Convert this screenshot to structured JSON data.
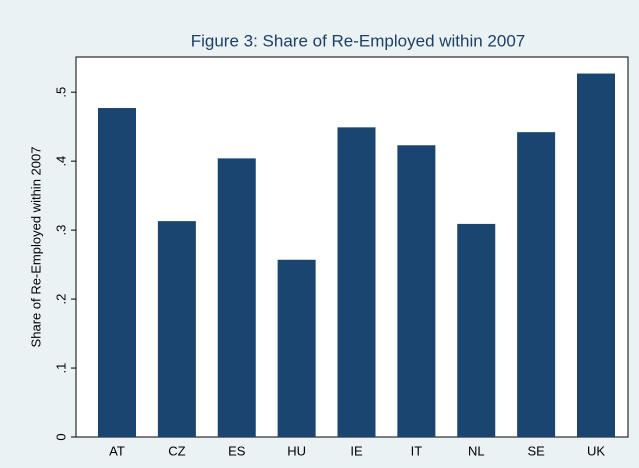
{
  "chart_data": {
    "type": "bar",
    "title": "Figure 3: Share of Re-Employed within 2007",
    "y_label": "Share of Re-Employed within 2007",
    "categories": [
      "AT",
      "CZ",
      "ES",
      "HU",
      "IE",
      "IT",
      "NL",
      "SE",
      "UK"
    ],
    "values": [
      0.477,
      0.313,
      0.404,
      0.257,
      0.449,
      0.423,
      0.309,
      0.442,
      0.527
    ],
    "color": "#1a4570",
    "ylim": [
      0,
      0.551
    ],
    "yticks": [
      0,
      {
        "value": 0.1,
        "label": ".1"
      },
      {
        "value": 0.2,
        "label": ".2"
      },
      {
        "value": 0.3,
        "label": ".3"
      },
      {
        "value": 0.4,
        "label": ".4"
      },
      {
        "value": 0.5,
        "label": ".5"
      }
    ],
    "grid": false
  }
}
